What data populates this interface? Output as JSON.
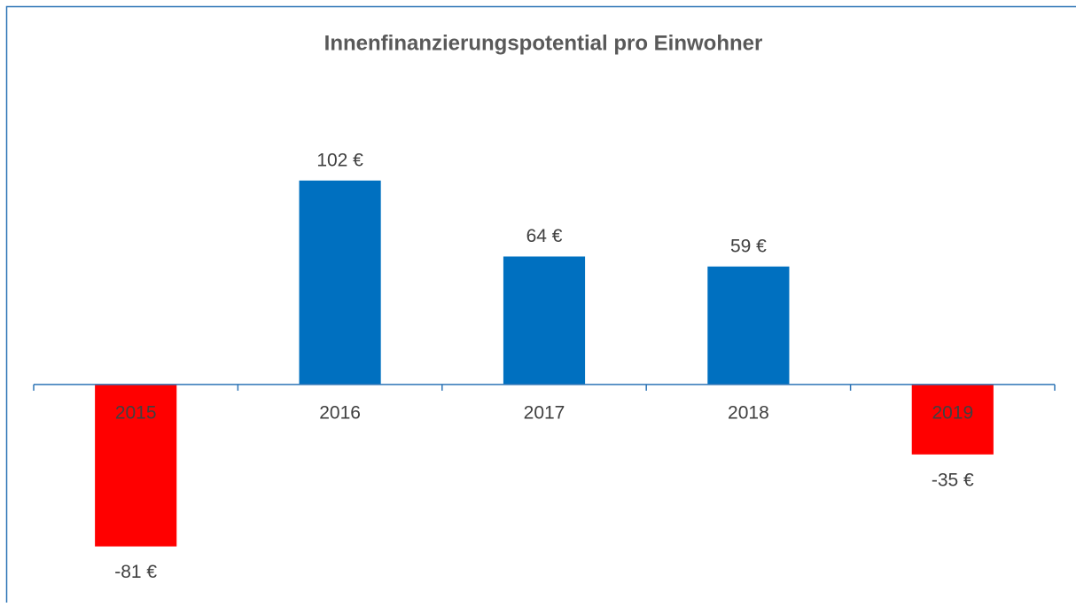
{
  "chart_data": {
    "type": "bar",
    "title": "Innenfinanzierungspotential pro Einwohner",
    "categories": [
      "2015",
      "2016",
      "2017",
      "2018",
      "2019"
    ],
    "values": [
      -81,
      102,
      64,
      59,
      -35
    ],
    "value_labels": [
      "-81 €",
      "102 €",
      "64 €",
      "59 €",
      "-35 €"
    ],
    "color": "#0070c0",
    "negative_color": "#ff0000",
    "ylim": [
      -100,
      140
    ]
  }
}
